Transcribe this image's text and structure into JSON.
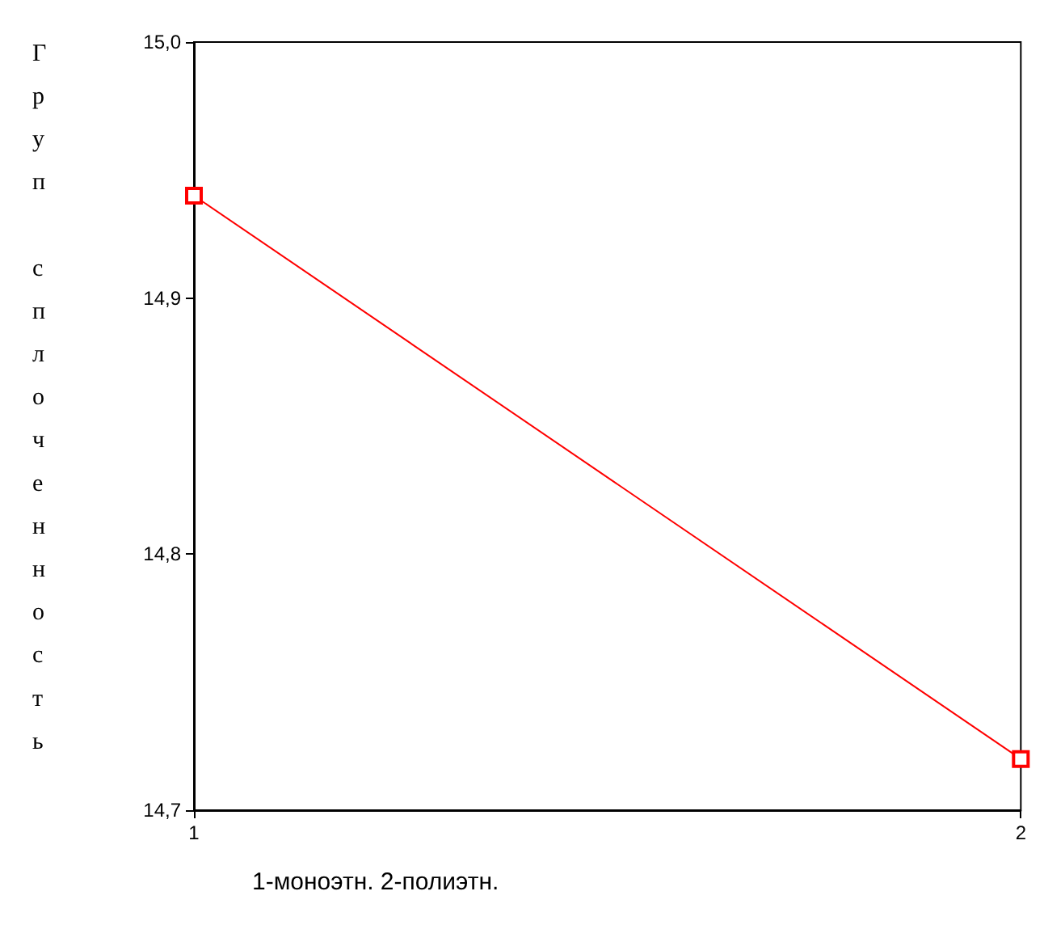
{
  "chart_data": {
    "type": "line",
    "xlabel": "1-моноэтн. 2-полиэтн.",
    "ylabel": "Груп сплоченность",
    "x": [
      1,
      2
    ],
    "series": [
      {
        "color": "#ff0000",
        "values": [
          14.94,
          14.72
        ]
      }
    ],
    "xlim": [
      1,
      2
    ],
    "xticks": [
      1,
      2
    ],
    "ylim": [
      14.7,
      15.0
    ],
    "yticks": [
      {
        "value": 14.7,
        "label": "14,7"
      },
      {
        "value": 14.8,
        "label": "14,8"
      },
      {
        "value": 14.9,
        "label": "14,9"
      },
      {
        "value": 15.0,
        "label": "15,0"
      }
    ],
    "grid": false,
    "marker": "square",
    "line_style": "solid"
  }
}
